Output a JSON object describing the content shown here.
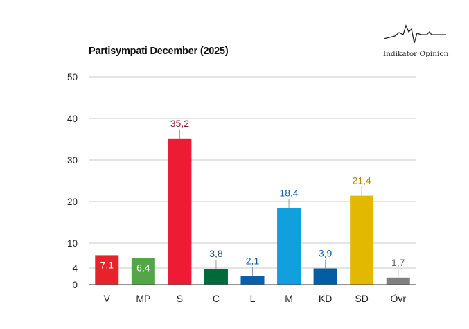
{
  "header": {
    "title": "Partisympati December (2025)",
    "logo_text": "Indikator Opinion"
  },
  "chart_data": {
    "type": "bar",
    "title": "Partisympati December (2025)",
    "xlabel": "",
    "ylabel": "",
    "ylim": [
      0,
      50
    ],
    "yticks": [
      0,
      4,
      10,
      20,
      30,
      40,
      50
    ],
    "grid": true,
    "categories": [
      "V",
      "MP",
      "S",
      "C",
      "L",
      "M",
      "KD",
      "SD",
      "Övr"
    ],
    "values": [
      7.1,
      6.4,
      35.2,
      3.8,
      2.1,
      18.4,
      3.9,
      21.4,
      1.7
    ],
    "value_labels": [
      "7,1",
      "6,4",
      "35,2",
      "3,8",
      "2,1",
      "18,4",
      "3,9",
      "21,4",
      "1,7"
    ],
    "label_inside": [
      true,
      true,
      false,
      false,
      false,
      false,
      false,
      false,
      false
    ],
    "colors": [
      "#e8212b",
      "#53a548",
      "#ed1b34",
      "#016a3a",
      "#0a5fa8",
      "#129fdd",
      "#005ea1",
      "#e3b800",
      "#808080"
    ],
    "label_colors": [
      "#ffffff",
      "#ffffff",
      "#8b1a2e",
      "#1d4f47",
      "#0a5fa8",
      "#0a5fa8",
      "#0a5fa8",
      "#b98a00",
      "#666666"
    ]
  }
}
